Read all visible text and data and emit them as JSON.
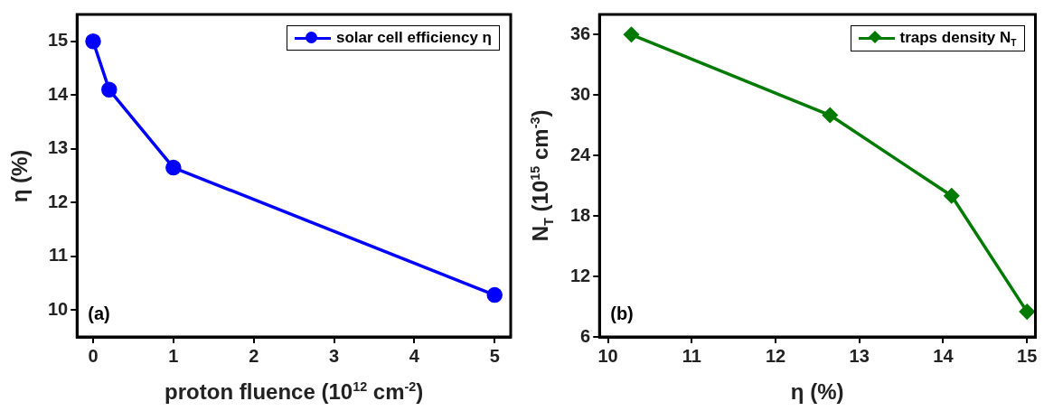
{
  "chart_data": [
    {
      "type": "line",
      "xlabel": "proton fluence (10$^{12}$ cm$^{-2}$)",
      "ylabel": "η (%)",
      "x": [
        0,
        0.2,
        1,
        5
      ],
      "series": [
        {
          "name": "solar cell efficiency η",
          "color": "#0000ff",
          "values": [
            15.0,
            14.1,
            12.65,
            10.28
          ]
        }
      ],
      "xlim": [
        -0.2,
        5.2
      ],
      "xticks": [
        0,
        1,
        2,
        3,
        4,
        5
      ],
      "ylim": [
        9.5,
        15.5
      ],
      "yticks": [
        10,
        11,
        12,
        13,
        14,
        15
      ],
      "grid": false,
      "legend": "top right",
      "marker": "circle",
      "line_style": "solid",
      "annotations": [
        "(a)"
      ]
    },
    {
      "type": "line",
      "xlabel": "η (%)",
      "ylabel": "N$_{T}$ (10$^{15}$ cm$^{-3}$)",
      "x": [
        10.28,
        12.65,
        14.1,
        15.0
      ],
      "series": [
        {
          "name": "traps density N$_{T}$",
          "color": "#007a00",
          "values": [
            36,
            28,
            20,
            8.5
          ]
        }
      ],
      "xlim": [
        9.9,
        15.1
      ],
      "xticks": [
        10,
        11,
        12,
        13,
        14,
        15
      ],
      "ylim": [
        6,
        38
      ],
      "yticks": [
        6,
        12,
        18,
        24,
        30,
        36
      ],
      "grid": false,
      "legend": "top right",
      "marker": "diamond",
      "line_style": "solid",
      "annotations": [
        "(b)"
      ]
    }
  ]
}
